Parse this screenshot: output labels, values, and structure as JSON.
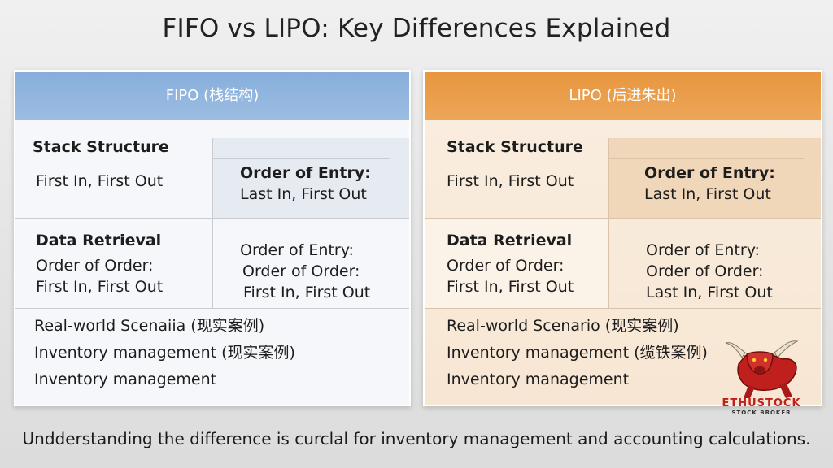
{
  "title": "FIFO vs LIPO: Key Differences Explained",
  "left": {
    "header": "FIPO (栈结构)",
    "row1": {
      "heading": "Stack Structure",
      "text": "First In, First Out",
      "right_line1": "Order of Entry:",
      "right_line2": "Last In, First Out"
    },
    "row2": {
      "heading": "Data Retrieval",
      "line1": "Order of Order:",
      "line2": "First In, First Out",
      "right_line1": "Order of Entry:",
      "right_line2": "Order of Order:",
      "right_line3": "First In, First Out"
    },
    "row3": {
      "line1": "Real-world Scenaiia (现实案例)",
      "line2": "Inventory management (现实案例)",
      "line3": "Inventory management"
    }
  },
  "right": {
    "header": "LIPO (后进朱出)",
    "row1": {
      "heading": "Stack Structure",
      "text": "First In, First Out",
      "right_line1": "Order of Entry:",
      "right_line2": "Last In, First Out"
    },
    "row2": {
      "heading": "Data Retrieval",
      "line1": "Order of Order:",
      "line2": "First In, First Out",
      "right_line1": "Order of Entry:",
      "right_line2": "Order of Order:",
      "right_line3": "Last In, First Out"
    },
    "row3": {
      "line1": "Real-world Scenario (现实案例)",
      "line2": "Inventory management (缆铁案例)",
      "line3": "Inventory management"
    }
  },
  "footer": "Undderstanding the difference is curclal for inventory management and accounting calculations.",
  "logo": {
    "name": "ETHUSTOCK",
    "tagline": "STOCK BROKER",
    "icon": "bull-icon"
  },
  "colors": {
    "left_header": "#8fb3dc",
    "right_header": "#e99b47",
    "logo_red": "#c0201d"
  }
}
